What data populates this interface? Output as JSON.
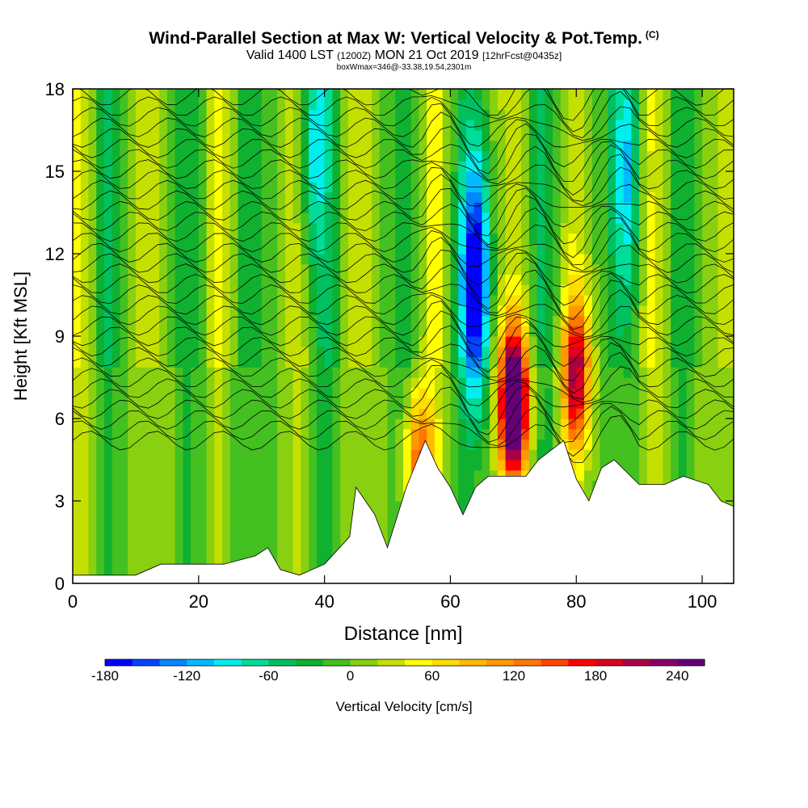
{
  "titles": {
    "main": "Wind-Parallel Section at Max W: Vertical Velocity & Pot.Temp.",
    "copyright": "(C)",
    "valid_prefix": "Valid 1400 LST",
    "valid_z": "(1200Z)",
    "valid_date": "MON 21 Oct 2019",
    "fcst": "[12hrFcst@0435z]",
    "box_info": "boxWmax=346@-33.38,19.54,2301m"
  },
  "chart_data": {
    "type": "heatmap",
    "xlabel": "Distance [nm]",
    "ylabel": "Height [Kft MSL]",
    "xlim": [
      0,
      105
    ],
    "ylim": [
      0,
      18
    ],
    "x_ticks": [
      0,
      20,
      40,
      60,
      80,
      100
    ],
    "y_ticks": [
      0,
      3,
      6,
      9,
      12,
      15,
      18
    ],
    "colorbar": {
      "label": "Vertical Velocity [cm/s]",
      "min": -180,
      "max": 260,
      "step": 20,
      "tick_labels": [
        -180,
        -120,
        -60,
        0,
        60,
        120,
        180,
        240
      ],
      "colors": [
        "#0000ff",
        "#0044ff",
        "#0088ff",
        "#00bbff",
        "#00eeee",
        "#00dd99",
        "#00c060",
        "#10b030",
        "#44c020",
        "#88d010",
        "#c4e000",
        "#ffff00",
        "#ffdd00",
        "#ffbb00",
        "#ff9900",
        "#ff7700",
        "#ff4400",
        "#ff0000",
        "#dd0022",
        "#aa0044",
        "#880066",
        "#660077"
      ]
    },
    "terrain_kft": [
      [
        0,
        0.3
      ],
      [
        10,
        0.3
      ],
      [
        14,
        0.7
      ],
      [
        24,
        0.7
      ],
      [
        29,
        1.0
      ],
      [
        31,
        1.3
      ],
      [
        33,
        0.5
      ],
      [
        36,
        0.3
      ],
      [
        40,
        0.7
      ],
      [
        44,
        1.7
      ],
      [
        45,
        3.5
      ],
      [
        48,
        2.5
      ],
      [
        50,
        1.3
      ],
      [
        53,
        3.5
      ],
      [
        56,
        5.2
      ],
      [
        58,
        4.2
      ],
      [
        60,
        3.5
      ],
      [
        62,
        2.5
      ],
      [
        64,
        3.5
      ],
      [
        66,
        3.9
      ],
      [
        72,
        3.9
      ],
      [
        74,
        4.5
      ],
      [
        78,
        5.2
      ],
      [
        80,
        3.8
      ],
      [
        82,
        3.0
      ],
      [
        84,
        4.2
      ],
      [
        86,
        4.5
      ],
      [
        90,
        3.6
      ],
      [
        94,
        3.6
      ],
      [
        97,
        3.9
      ],
      [
        101,
        3.6
      ],
      [
        103,
        3.0
      ],
      [
        105,
        2.8
      ]
    ],
    "updraft_cores": [
      {
        "x": 70,
        "z": 6.5,
        "w": 346
      },
      {
        "x": 80,
        "z": 7.5,
        "w": 200
      },
      {
        "x": 55,
        "z": 4.5,
        "w": 150
      }
    ],
    "downdraft_cores": [
      {
        "x": 38,
        "z": 16.0,
        "w": -80
      },
      {
        "x": 64,
        "z": 11.0,
        "w": -180
      },
      {
        "x": 88,
        "z": 15.0,
        "w": -80
      }
    ]
  }
}
